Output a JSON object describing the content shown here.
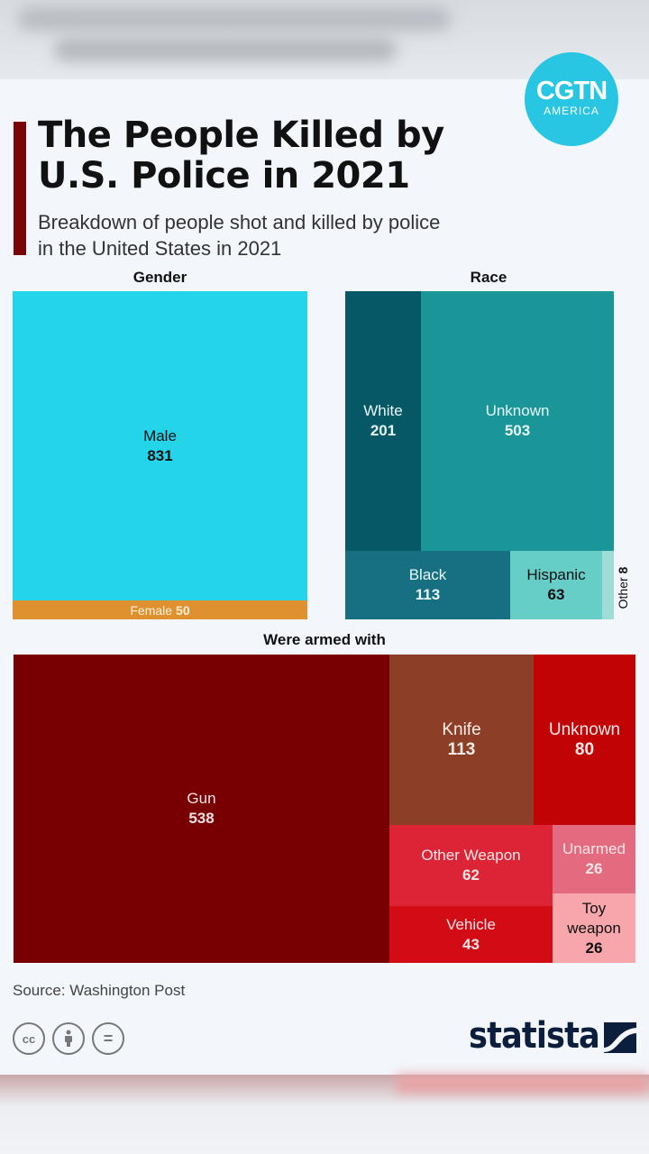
{
  "header": {
    "title": "The People Killed by U.S. Police in 2021",
    "title_line1": "The People Killed by",
    "title_line2": "U.S. Police in 2021",
    "subtitle": "Breakdown of people shot and killed by police in the United States in 2021",
    "subtitle_line1": "Breakdown of people shot and killed by police",
    "subtitle_line2": "in the United States in 2021",
    "logo": {
      "line1": "CGTN",
      "line2": "AMERICA"
    }
  },
  "footer": {
    "source": "Source: Washington Post",
    "license_icons": [
      "cc-icon",
      "attribution-icon",
      "no-derivatives-icon"
    ],
    "cc_label": "cc",
    "eq_label": "=",
    "brand": "statista"
  },
  "colors": {
    "accent": "#7a0508",
    "male": "#24d4e8",
    "female": "#e0912f",
    "white": "#075866",
    "unknown_race": "#1a9698",
    "black": "#176f82",
    "hispanic": "#66cdc7",
    "other_race": "#9fdcd8",
    "gun": "#780003",
    "knife": "#8d3e27",
    "unknown_armed": "#c10306",
    "other_weapon": "#dd2436",
    "vehicle": "#d20b14",
    "unarmed": "#e36a7f",
    "toy_weapon": "#f7a7ab"
  },
  "chart_data": [
    {
      "type": "treemap",
      "title": "Gender",
      "items": [
        {
          "label": "Male",
          "value": 831
        },
        {
          "label": "Female",
          "value": 50
        }
      ]
    },
    {
      "type": "treemap",
      "title": "Race",
      "items": [
        {
          "label": "White",
          "value": 201
        },
        {
          "label": "Unknown",
          "value": 503
        },
        {
          "label": "Black",
          "value": 113
        },
        {
          "label": "Hispanic",
          "value": 63
        },
        {
          "label": "Other",
          "value": 8
        }
      ]
    },
    {
      "type": "treemap",
      "title": "Were armed with",
      "items": [
        {
          "label": "Gun",
          "value": 538
        },
        {
          "label": "Knife",
          "value": 113
        },
        {
          "label": "Unknown",
          "value": 80
        },
        {
          "label": "Other Weapon",
          "value": 62
        },
        {
          "label": "Vehicle",
          "value": 43
        },
        {
          "label": "Unarmed",
          "value": 26
        },
        {
          "label": "Toy weapon",
          "value": 26
        }
      ]
    }
  ]
}
